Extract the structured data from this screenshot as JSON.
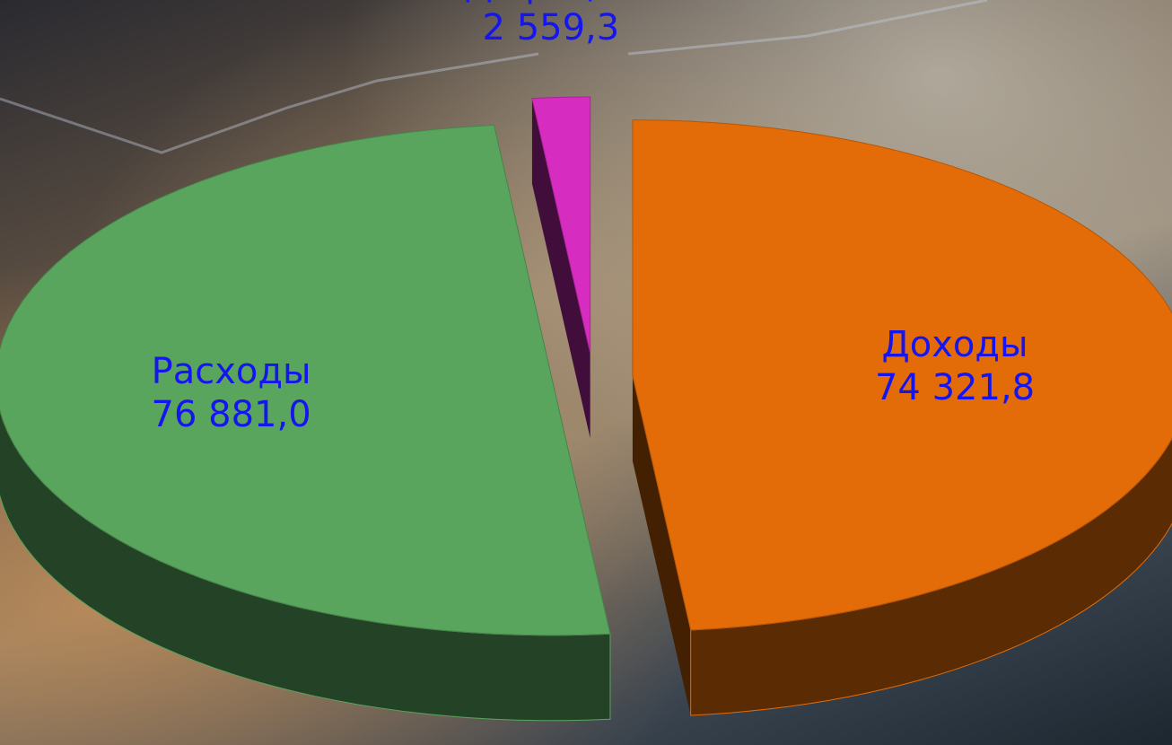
{
  "chart_data": {
    "type": "pie",
    "categories": [
      "Доходы",
      "Расходы",
      "Дефицит"
    ],
    "values": [
      74321.8,
      76881.0,
      2559.3
    ],
    "value_labels": [
      "74 321,8",
      "76 881,0",
      "2 559,3"
    ],
    "colors": [
      "#e36c09",
      "#59a55e",
      "#d72cc0"
    ]
  }
}
